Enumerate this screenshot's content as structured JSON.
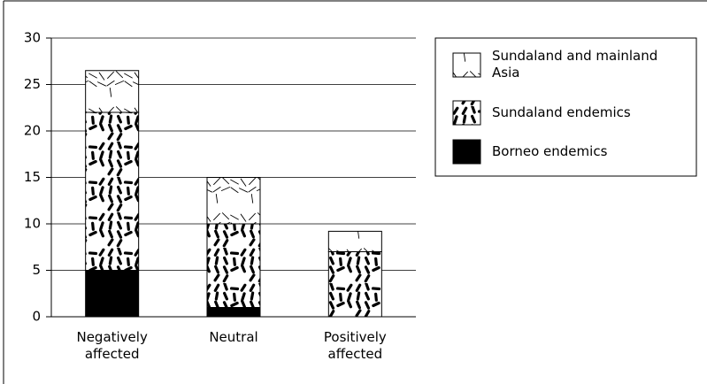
{
  "chart_data": {
    "type": "bar",
    "stacked": true,
    "categories": [
      "Negatively affected",
      "Neutral",
      "Positively affected"
    ],
    "series": [
      {
        "name": "Borneo endemics",
        "color": "#000000",
        "values": [
          5,
          1,
          0
        ]
      },
      {
        "name": "Sundaland endemics",
        "color": "#000000",
        "values": [
          17,
          9,
          7
        ]
      },
      {
        "name": "Sundaland and mainland Asia",
        "color": "#000000",
        "values": [
          4.5,
          5,
          2.2
        ]
      }
    ],
    "ylim": [
      0,
      30
    ],
    "yticks": [
      0,
      5,
      10,
      15,
      20,
      25,
      30
    ],
    "grid": true,
    "legend": "right"
  }
}
